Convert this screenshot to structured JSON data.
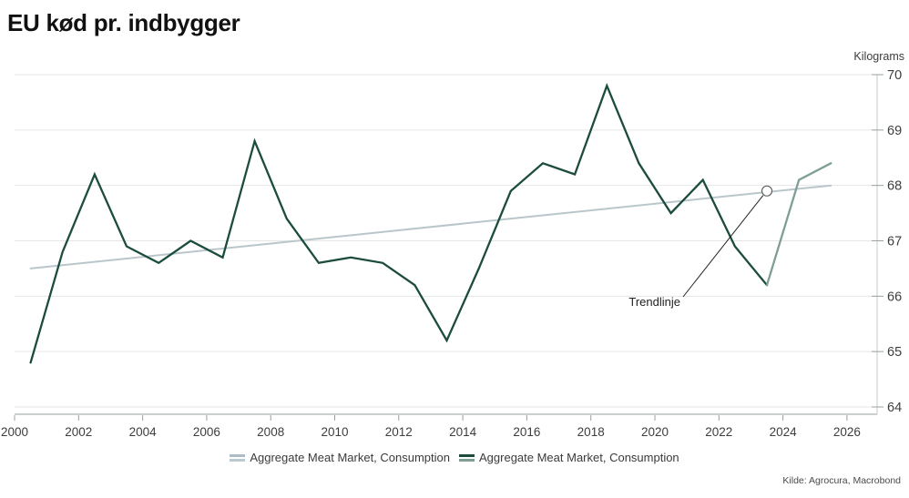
{
  "header": {
    "title": "EU kød pr. indbygger"
  },
  "footer": {
    "source": "Kilde: Agrocura, Macrobond"
  },
  "colors": {
    "history_line": "#1b4c3c",
    "forecast_line": "#7f9e94",
    "trend_line": "#b9c6cc",
    "gridline": "#e6e6e6",
    "axis_line": "#9aa0a3",
    "right_axis_line": "#c6cbce",
    "tick": "#9aa0a3",
    "axis_text": "#3d3d3d",
    "annotation_line": "#222222",
    "annotation_text": "#222222",
    "marker_circle_stroke": "#555555",
    "marker_circle_fill": "#ffffff"
  },
  "legend": {
    "items": [
      {
        "label": "Aggregate Meat Market, Consumption",
        "marker_colors": [
          "#aebdc5",
          "#bcc9cf"
        ]
      },
      {
        "label": "Aggregate Meat Market, Consumption",
        "marker_colors": [
          "#1b4c3c",
          "#7f9e94"
        ]
      }
    ]
  },
  "chart_data": {
    "type": "line",
    "title": "EU kød pr. indbygger",
    "unit_label": "Kilograms",
    "xlabel": "",
    "ylabel": "Kilograms",
    "xlim": [
      2000,
      2026.9
    ],
    "ylim": [
      64,
      70
    ],
    "x_ticks": [
      2000,
      2002,
      2004,
      2006,
      2008,
      2010,
      2012,
      2014,
      2016,
      2018,
      2020,
      2022,
      2024,
      2026
    ],
    "y_ticks": [
      64,
      65,
      66,
      67,
      68,
      69,
      70
    ],
    "grid": "horizontal",
    "legend_position": "bottom-center",
    "series": [
      {
        "name": "Aggregate Meat Market, Consumption",
        "role": "trendline",
        "x": [
          2000.5,
          2025.5
        ],
        "values": [
          66.5,
          68.0
        ]
      },
      {
        "name": "Aggregate Meat Market, Consumption",
        "role": "history",
        "x": [
          2000.5,
          2001.5,
          2002.5,
          2003.5,
          2004.5,
          2005.5,
          2006.5,
          2007.5,
          2008.5,
          2009.5,
          2010.5,
          2011.5,
          2012.5,
          2013.5,
          2014.5,
          2015.5,
          2016.5,
          2017.5,
          2018.5,
          2019.5,
          2020.5,
          2021.5,
          2022.5,
          2023.5
        ],
        "values": [
          64.8,
          66.8,
          68.2,
          66.9,
          66.6,
          67.0,
          66.7,
          68.8,
          67.4,
          66.6,
          66.7,
          66.6,
          66.2,
          65.2,
          66.5,
          67.9,
          68.4,
          68.2,
          69.8,
          68.4,
          67.5,
          68.1,
          66.9,
          66.2
        ]
      },
      {
        "name": "Aggregate Meat Market, Consumption (forecast)",
        "role": "forecast",
        "x": [
          2023.5,
          2024.5,
          2025.5
        ],
        "values": [
          66.2,
          68.1,
          68.4
        ]
      }
    ],
    "annotation": {
      "label": "Trendlinje",
      "x": 2023.5,
      "y": 67.9
    }
  }
}
